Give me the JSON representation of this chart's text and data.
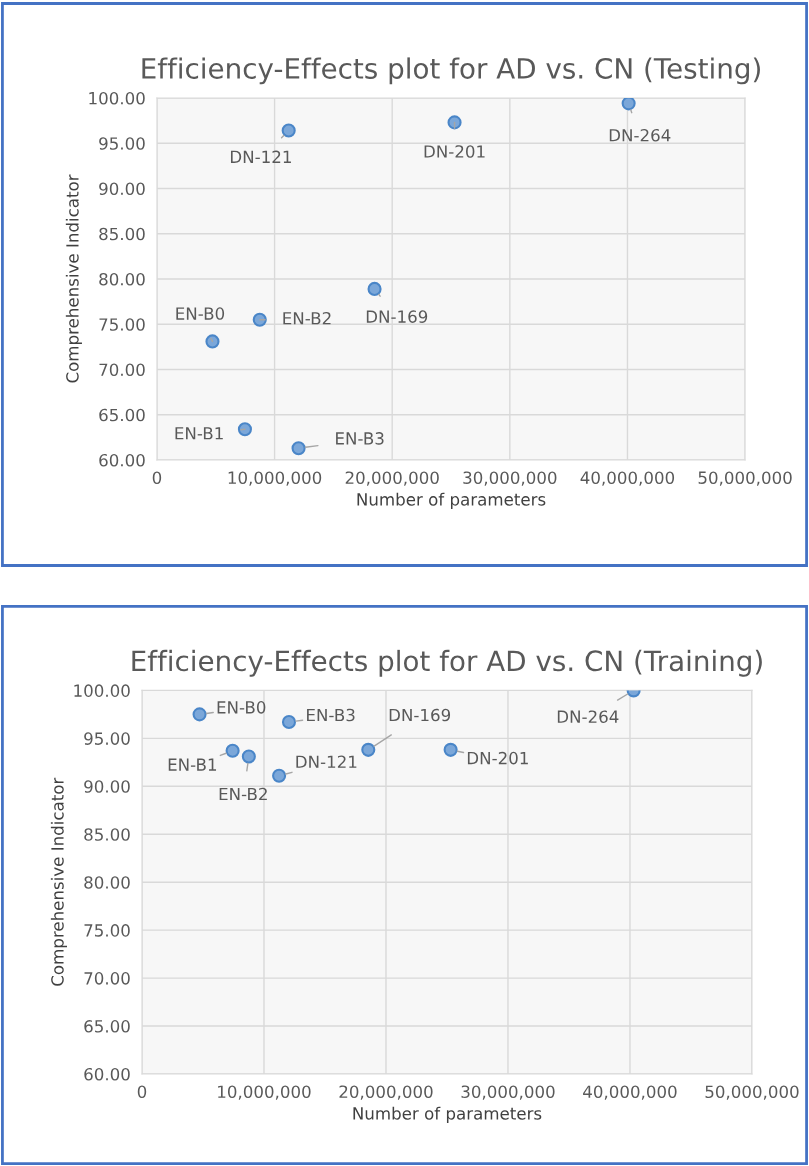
{
  "chart_data": [
    {
      "type": "scatter",
      "title": "Efficiency-Effects plot for AD vs. CN (Testing)",
      "xlabel": "Number of parameters",
      "ylabel": "Comprehensive Indicator",
      "series": [
        {
          "color": "#7ba7d9",
          "x": [
            4720000,
            7480000,
            8740000,
            12040000,
            11200000,
            18500000,
            25300000,
            40100000
          ],
          "values": [
            73.1,
            63.4,
            75.5,
            61.3,
            96.4,
            78.9,
            97.3,
            99.4
          ]
        }
      ],
      "annotations": [
        {
          "text": "EN-B0",
          "x": 4720000,
          "y": 73.1
        },
        {
          "text": "EN-B1",
          "x": 7480000,
          "y": 63.4
        },
        {
          "text": "EN-B2",
          "x": 8740000,
          "y": 75.5
        },
        {
          "text": "EN-B3",
          "x": 12040000,
          "y": 61.3
        },
        {
          "text": "DN-121",
          "x": 11200000,
          "y": 96.4
        },
        {
          "text": "DN-169",
          "x": 18500000,
          "y": 78.9
        },
        {
          "text": "DN-201",
          "x": 25300000,
          "y": 97.3
        },
        {
          "text": "DN-264",
          "x": 40100000,
          "y": 99.4
        }
      ],
      "xlim": [
        0,
        50000000
      ],
      "ylim": [
        60,
        100
      ],
      "xticks": [
        0,
        {
          "value": 10000000,
          "label": "10,000,000"
        },
        {
          "value": 20000000,
          "label": "20,000,000"
        },
        {
          "value": 30000000,
          "label": "30,000,000"
        },
        {
          "value": 40000000,
          "label": "40,000,000"
        },
        {
          "value": 50000000,
          "label": "50,000,000"
        }
      ],
      "yticks": [
        {
          "value": 60,
          "label": "60.00"
        },
        {
          "value": 65,
          "label": "65.00"
        },
        {
          "value": 70,
          "label": "70.00"
        },
        {
          "value": 75,
          "label": "75.00"
        },
        {
          "value": 80,
          "label": "80.00"
        },
        {
          "value": 85,
          "label": "85.00"
        },
        {
          "value": 90,
          "label": "90.00"
        },
        {
          "value": 95,
          "label": "95.00"
        },
        {
          "value": 100,
          "label": "100.00"
        }
      ],
      "grid": true,
      "marker": "circle"
    },
    {
      "type": "scatter",
      "title": "Efficiency-Effects plot for AD vs. CN (Training)",
      "xlabel": "Number of parameters",
      "ylabel": "Comprehensive Indicator",
      "series": [
        {
          "color": "#7ba7d9",
          "x": [
            4720000,
            7430000,
            8760000,
            12050000,
            11240000,
            18550000,
            25300000,
            40300000
          ],
          "values": [
            97.5,
            93.7,
            93.1,
            96.7,
            91.1,
            93.8,
            93.8,
            100.0
          ]
        }
      ],
      "annotations": [
        {
          "text": "EN-B0",
          "x": 4720000,
          "y": 97.5
        },
        {
          "text": "EN-B1",
          "x": 7430000,
          "y": 93.7
        },
        {
          "text": "EN-B2",
          "x": 8760000,
          "y": 93.1
        },
        {
          "text": "EN-B3",
          "x": 12050000,
          "y": 96.7
        },
        {
          "text": "DN-121",
          "x": 11240000,
          "y": 91.1
        },
        {
          "text": "DN-169",
          "x": 18550000,
          "y": 93.8
        },
        {
          "text": "DN-201",
          "x": 25300000,
          "y": 93.8
        },
        {
          "text": "DN-264",
          "x": 40300000,
          "y": 100.0
        }
      ],
      "xlim": [
        0,
        50000000
      ],
      "ylim": [
        60,
        100
      ],
      "xticks": [
        0,
        {
          "value": 10000000,
          "label": "10,000,000"
        },
        {
          "value": 20000000,
          "label": "20,000,000"
        },
        {
          "value": 30000000,
          "label": "30,000,000"
        },
        {
          "value": 40000000,
          "label": "40,000,000"
        },
        {
          "value": 50000000,
          "label": "50,000,000"
        }
      ],
      "yticks": [
        {
          "value": 60,
          "label": "60.00"
        },
        {
          "value": 65,
          "label": "65.00"
        },
        {
          "value": 70,
          "label": "70.00"
        },
        {
          "value": 75,
          "label": "75.00"
        },
        {
          "value": 80,
          "label": "80.00"
        },
        {
          "value": 85,
          "label": "85.00"
        },
        {
          "value": 90,
          "label": "90.00"
        },
        {
          "value": 95,
          "label": "95.00"
        },
        {
          "value": 100,
          "label": "100.00"
        }
      ],
      "grid": true,
      "marker": "circle"
    }
  ]
}
